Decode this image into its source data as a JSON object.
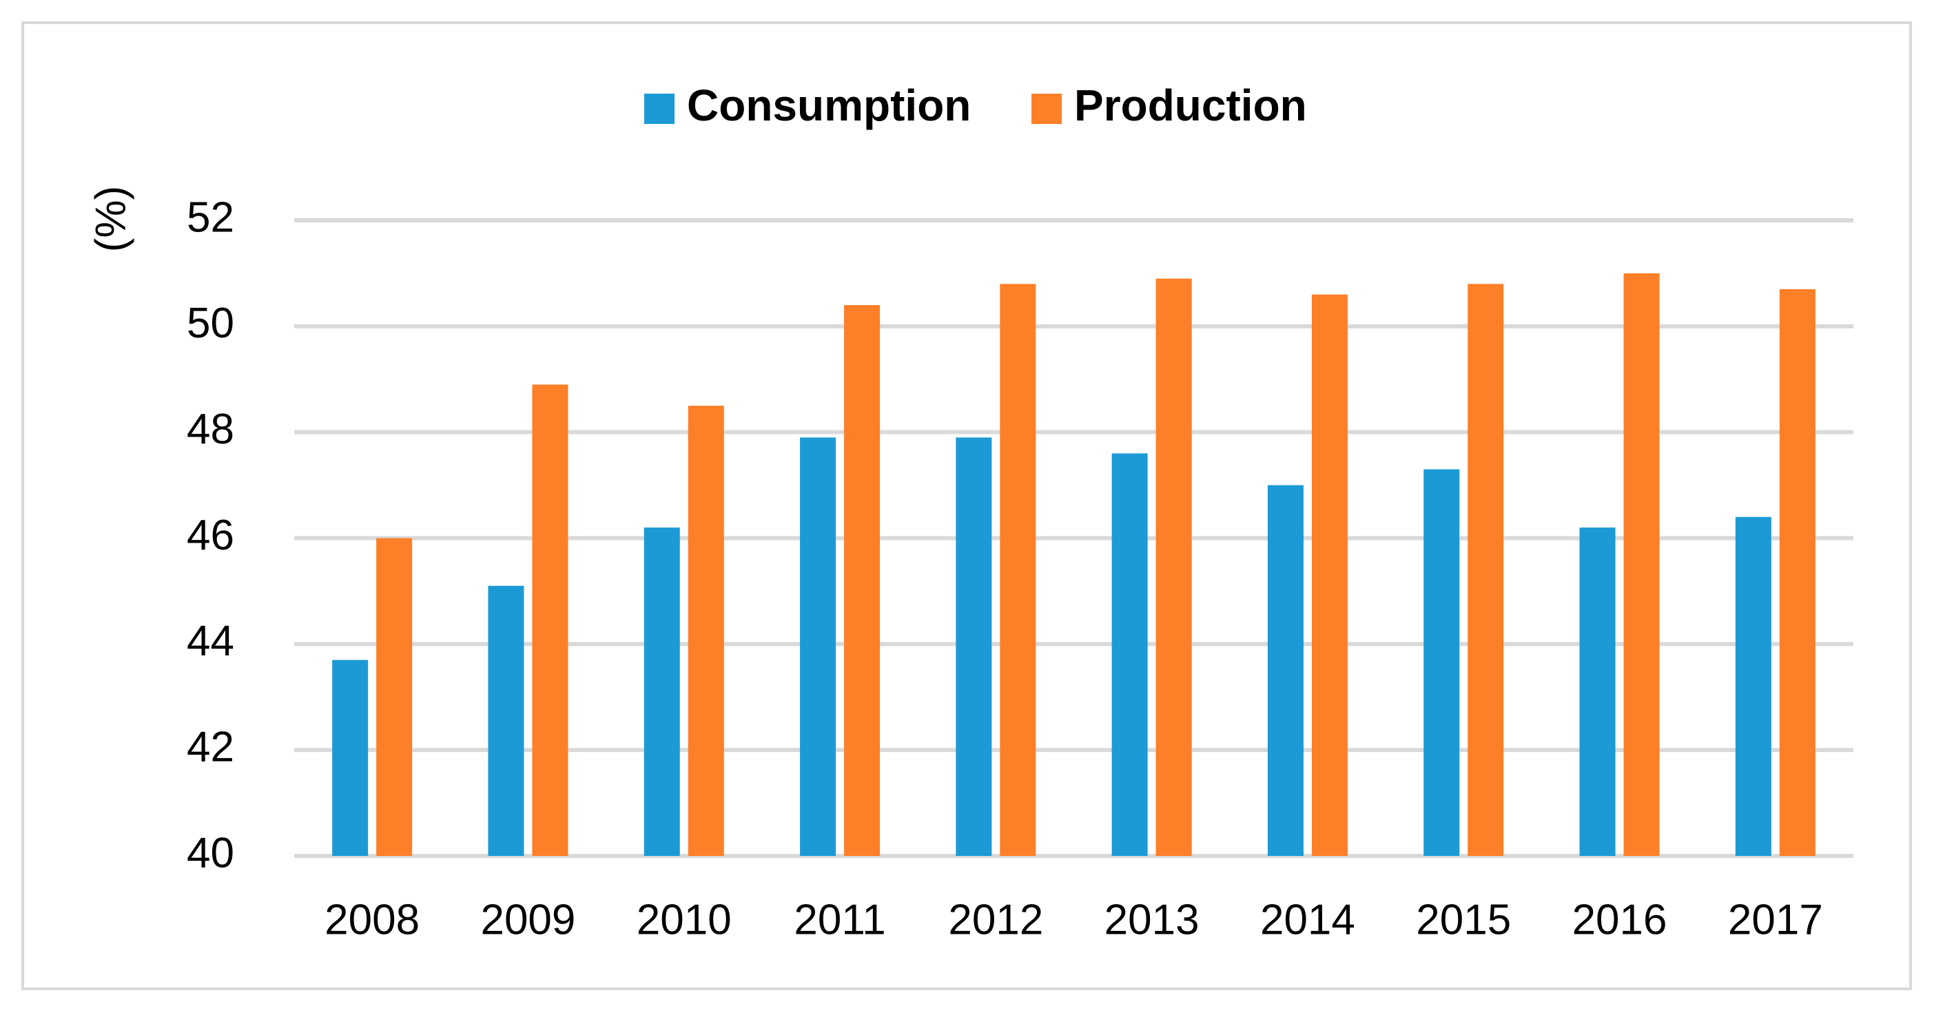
{
  "chart_data": {
    "type": "bar",
    "title": "",
    "xlabel": "",
    "ylabel": "(%)",
    "ylim": [
      40,
      52
    ],
    "yticks": [
      40,
      42,
      44,
      46,
      48,
      50,
      52
    ],
    "grid": true,
    "legend_position": "top-center",
    "categories": [
      "2008",
      "2009",
      "2010",
      "2011",
      "2012",
      "2013",
      "2014",
      "2015",
      "2016",
      "2017"
    ],
    "series": [
      {
        "name": "Consumption",
        "color": "#1b9ad6",
        "values": [
          43.7,
          45.1,
          46.2,
          47.9,
          47.9,
          47.6,
          47.0,
          47.3,
          46.2,
          46.4
        ]
      },
      {
        "name": "Production",
        "color": "#fd7f28",
        "values": [
          46.0,
          48.9,
          48.5,
          50.4,
          50.8,
          50.9,
          50.6,
          50.8,
          51.0,
          50.7
        ]
      }
    ],
    "colors": {
      "grid": "#d9d9d9",
      "border": "#d9d9d9",
      "text": "#000000"
    }
  }
}
